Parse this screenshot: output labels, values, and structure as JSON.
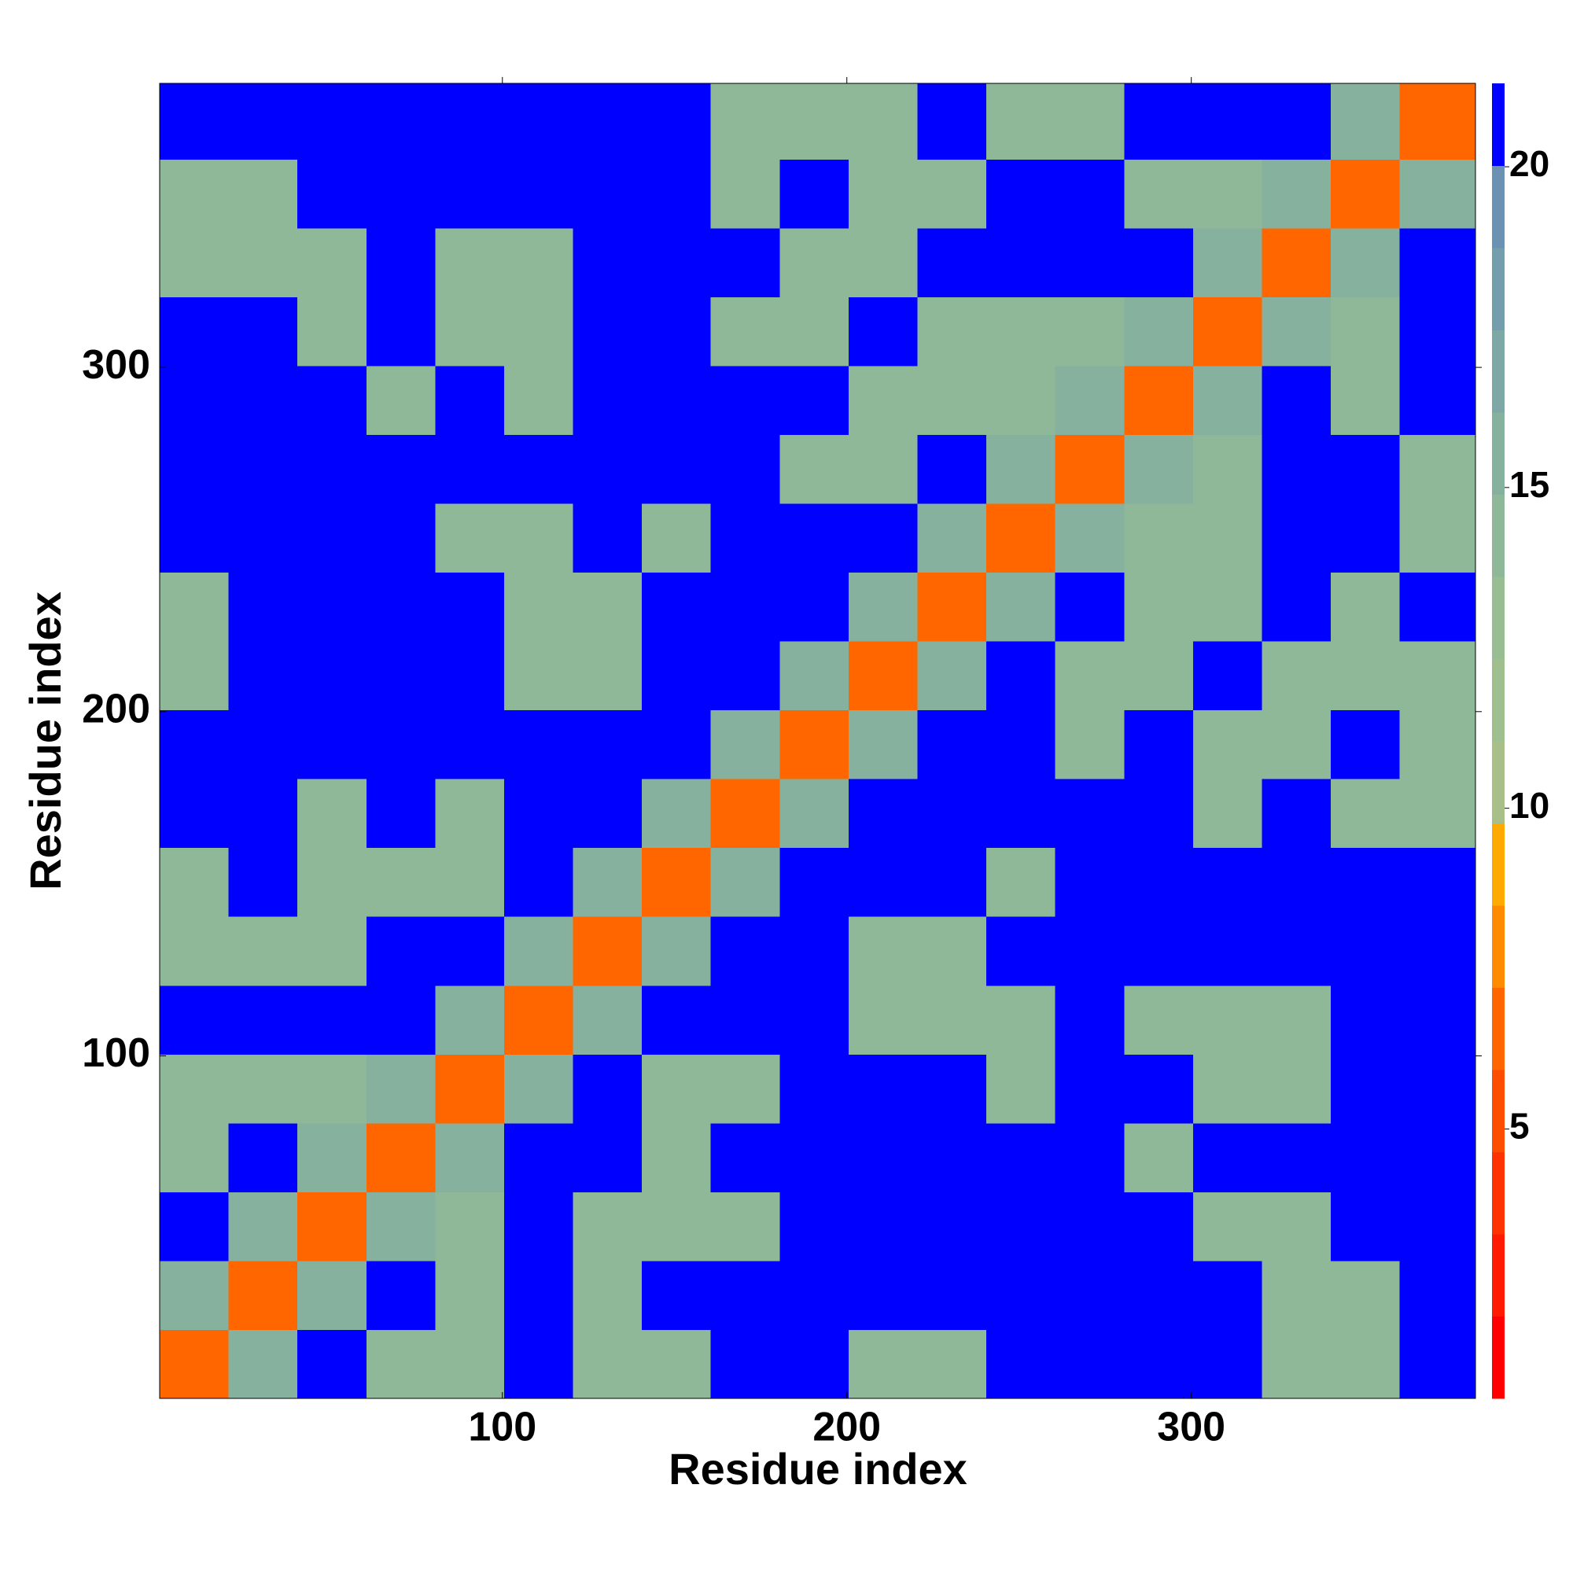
{
  "chart_data": {
    "type": "heatmap",
    "xlabel": "Residue index",
    "ylabel": "Residue index",
    "xbins": [
      0.5,
      20.5,
      40.5,
      60.5,
      80.5,
      100.5,
      120.5,
      140.5,
      160.5,
      180.5,
      200.5,
      220.5,
      240.5,
      260.5,
      280.5,
      300.5,
      320.5,
      340.5,
      360.5,
      382.5
    ],
    "ybins": [
      0.5,
      20.5,
      40.5,
      60.5,
      80.5,
      100.5,
      120.5,
      140.5,
      160.5,
      180.5,
      200.5,
      220.5,
      240.5,
      260.5,
      280.5,
      300.5,
      320.5,
      340.5,
      360.5,
      382.5
    ],
    "z": [
      [
        7,
        15,
        21,
        14,
        14,
        21,
        14,
        14,
        21,
        21,
        14,
        14,
        21,
        21,
        21,
        21,
        14,
        14,
        21
      ],
      [
        15,
        7,
        15,
        21,
        14,
        21,
        14,
        21,
        21,
        21,
        21,
        21,
        21,
        21,
        21,
        21,
        14,
        14,
        21
      ],
      [
        21,
        15,
        7,
        15,
        14,
        21,
        14,
        14,
        14,
        21,
        21,
        21,
        21,
        21,
        21,
        14,
        14,
        21,
        21
      ],
      [
        14,
        21,
        15,
        7,
        15,
        21,
        21,
        14,
        21,
        21,
        21,
        21,
        21,
        21,
        14,
        21,
        21,
        21,
        21
      ],
      [
        14,
        14,
        14,
        15,
        7,
        15,
        21,
        14,
        14,
        21,
        21,
        21,
        14,
        21,
        21,
        14,
        14,
        21,
        21
      ],
      [
        21,
        21,
        21,
        21,
        15,
        7,
        15,
        21,
        21,
        21,
        14,
        14,
        14,
        21,
        14,
        14,
        14,
        21,
        21
      ],
      [
        14,
        14,
        14,
        21,
        21,
        15,
        7,
        15,
        21,
        21,
        14,
        14,
        21,
        21,
        21,
        21,
        21,
        21,
        21
      ],
      [
        14,
        21,
        14,
        14,
        14,
        21,
        15,
        7,
        15,
        21,
        21,
        21,
        14,
        21,
        21,
        21,
        21,
        21,
        21
      ],
      [
        21,
        21,
        14,
        21,
        14,
        21,
        21,
        15,
        7,
        15,
        21,
        21,
        21,
        21,
        21,
        14,
        21,
        14,
        14
      ],
      [
        21,
        21,
        21,
        21,
        21,
        21,
        21,
        21,
        15,
        7,
        15,
        21,
        21,
        14,
        21,
        14,
        14,
        21,
        14
      ],
      [
        14,
        21,
        21,
        21,
        21,
        14,
        14,
        21,
        21,
        15,
        7,
        15,
        21,
        14,
        14,
        21,
        14,
        14,
        14
      ],
      [
        14,
        21,
        21,
        21,
        21,
        14,
        14,
        21,
        21,
        21,
        15,
        7,
        15,
        21,
        14,
        14,
        21,
        14,
        21
      ],
      [
        21,
        21,
        21,
        21,
        14,
        14,
        21,
        14,
        21,
        21,
        21,
        15,
        7,
        15,
        14,
        14,
        21,
        21,
        14
      ],
      [
        21,
        21,
        21,
        21,
        21,
        21,
        21,
        21,
        21,
        14,
        14,
        21,
        15,
        7,
        15,
        14,
        21,
        21,
        14
      ],
      [
        21,
        21,
        21,
        14,
        21,
        14,
        21,
        21,
        21,
        21,
        14,
        14,
        14,
        15,
        7,
        15,
        21,
        14,
        21
      ],
      [
        21,
        21,
        14,
        21,
        14,
        14,
        21,
        21,
        14,
        14,
        21,
        14,
        14,
        14,
        15,
        7,
        15,
        14,
        21
      ],
      [
        14,
        14,
        14,
        21,
        14,
        14,
        21,
        21,
        21,
        14,
        14,
        21,
        21,
        21,
        21,
        15,
        7,
        15,
        21
      ],
      [
        14,
        14,
        21,
        21,
        21,
        21,
        21,
        21,
        14,
        21,
        14,
        14,
        21,
        21,
        14,
        14,
        15,
        7,
        15
      ],
      [
        21,
        21,
        21,
        21,
        21,
        21,
        21,
        21,
        14,
        14,
        14,
        21,
        14,
        14,
        21,
        21,
        21,
        15,
        7
      ]
    ],
    "xlim": [
      0.5,
      382.5
    ],
    "ylim": [
      0.5,
      382.5
    ],
    "xticks": [
      100,
      200,
      300
    ],
    "yticks": [
      100,
      200,
      300
    ],
    "colorbar": {
      "lim": [
        0.8,
        21.3
      ],
      "ticks": [
        5,
        10,
        15,
        20
      ],
      "colors": [
        "#ff0000",
        "#ff1a00",
        "#ff3300",
        "#ff4d00",
        "#ff6600",
        "#ff8c00",
        "#ffaa00",
        "#a8bf88",
        "#9fc08e",
        "#98bd92",
        "#8fb898",
        "#86b19e",
        "#7ea8a5",
        "#759eac",
        "#6b92b3",
        "#0000ff"
      ]
    }
  }
}
